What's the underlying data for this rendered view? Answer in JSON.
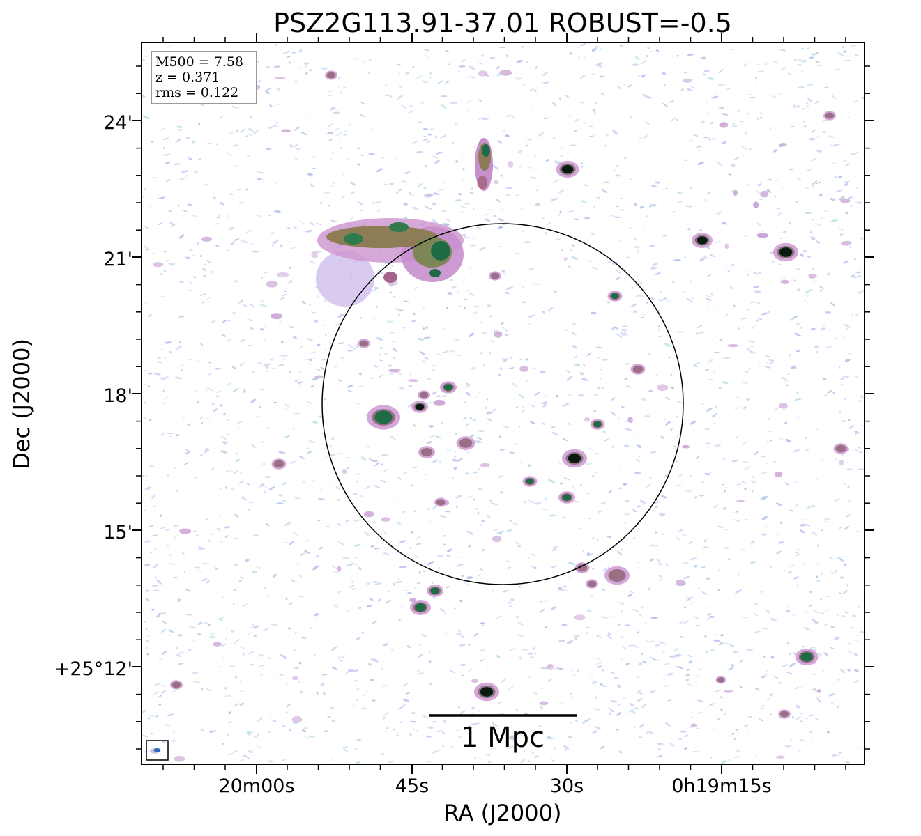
{
  "title": "PSZ2G113.91-37.01 ROBUST=-0.5",
  "info_box": {
    "lines": [
      "M500 = 7.58",
      "z = 0.371",
      "rms = 0.122"
    ]
  },
  "scale_bar": {
    "label": "1 Mpc"
  },
  "axes": {
    "xlabel": "RA (J2000)",
    "ylabel": "Dec (J2000)",
    "x_ticks": [
      "20m00s",
      "45s",
      "30s",
      "0h19m15s"
    ],
    "y_ticks": [
      "24'",
      "21'",
      "18'",
      "15'",
      "+25°12'"
    ]
  },
  "colors": {
    "faint": "#b4c6ec",
    "mid": "#c89ad0",
    "bright": "#8a7a56",
    "peak": "#1f6b45",
    "core": "#0a1a10"
  }
}
